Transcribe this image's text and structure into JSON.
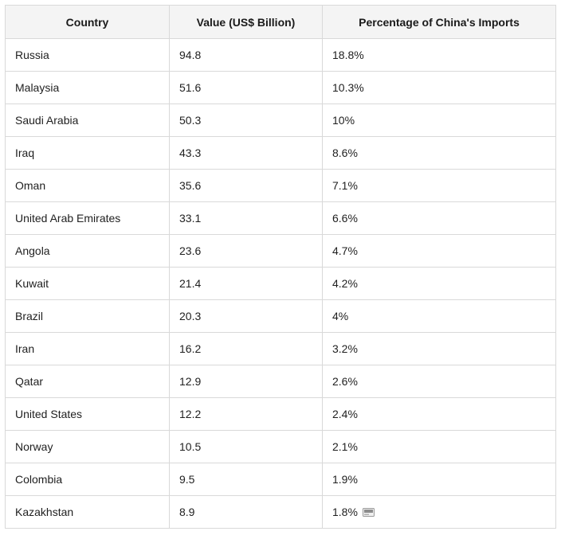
{
  "table": {
    "headers": [
      "Country",
      "Value (US$ Billion)",
      "Percentage of China's Imports"
    ],
    "rows": [
      [
        "Russia",
        "94.8",
        "18.8%"
      ],
      [
        "Malaysia",
        "51.6",
        "10.3%"
      ],
      [
        "Saudi Arabia",
        "50.3",
        "10%"
      ],
      [
        "Iraq",
        "43.3",
        "8.6%"
      ],
      [
        "Oman",
        "35.6",
        "7.1%"
      ],
      [
        "United Arab Emirates",
        "33.1",
        "6.6%"
      ],
      [
        "Angola",
        "23.6",
        "4.7%"
      ],
      [
        "Kuwait",
        "21.4",
        "4.2%"
      ],
      [
        "Brazil",
        "20.3",
        "4%"
      ],
      [
        "Iran",
        "16.2",
        "3.2%"
      ],
      [
        "Qatar",
        "12.9",
        "2.6%"
      ],
      [
        "United States",
        "12.2",
        "2.4%"
      ],
      [
        "Norway",
        "10.5",
        "2.1%"
      ],
      [
        "Colombia",
        "9.5",
        "1.9%"
      ],
      [
        "Kazakhstan",
        "8.9",
        "1.8%"
      ]
    ]
  },
  "trailing_icon": "small-image-icon"
}
